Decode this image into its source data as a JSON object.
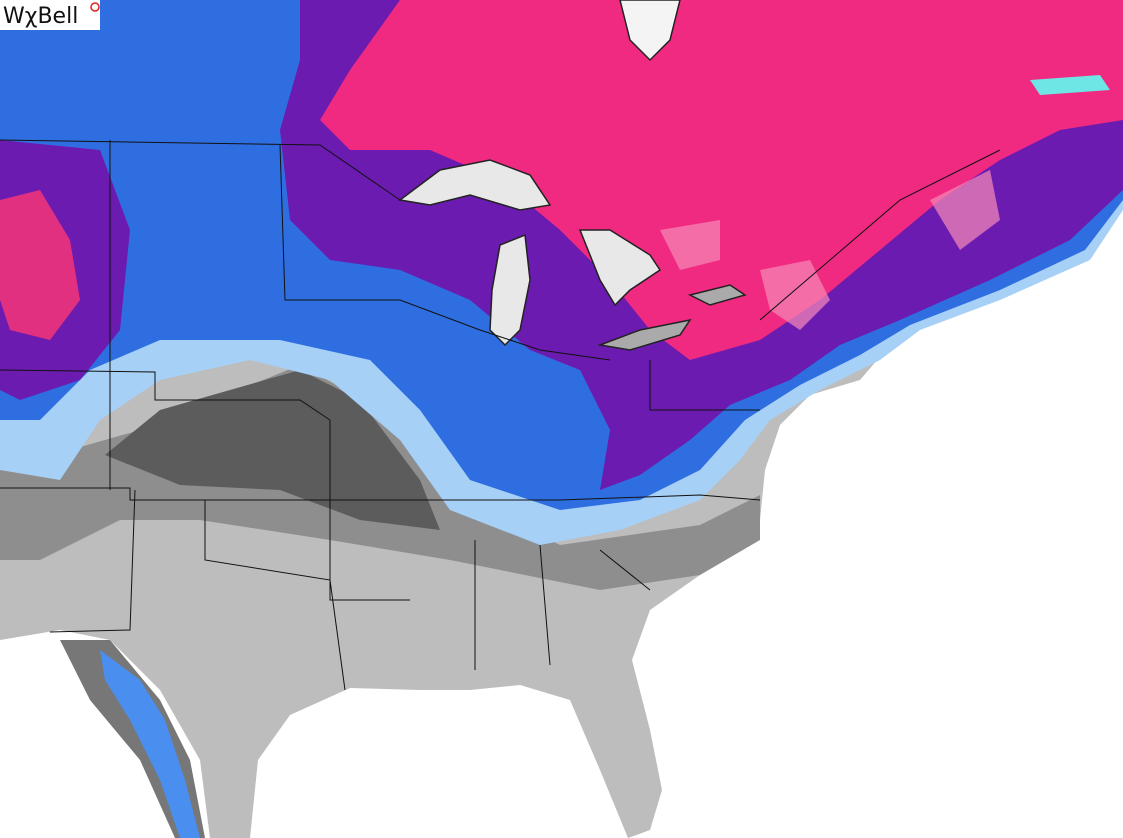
{
  "logo": {
    "text": "WχBell"
  }
}
